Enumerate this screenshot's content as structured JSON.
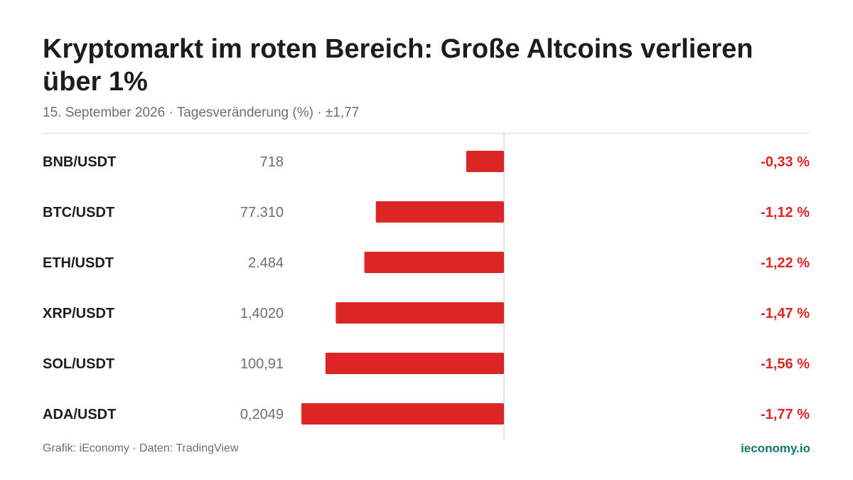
{
  "header": {
    "title": "Kryptomarkt im roten Bereich: Große Altcoins verlieren über 1%",
    "subtitle_date": "15. September 2026",
    "subtitle_separator": " · ",
    "subtitle_metric": "Tagesveränderung (%)",
    "subtitle_range": "±1,77"
  },
  "footer": {
    "credit": "Grafik: iEconomy · Daten: TradingView",
    "brand": "ieconomy.io"
  },
  "colors": {
    "bar": "#dc2626",
    "change_text": "#dc2626",
    "zero_line": "#d9dcda",
    "pair_text": "#1a1f1c",
    "price_text": "#6b6f6d",
    "brand": "#0f7a6b"
  },
  "chart_data": {
    "type": "bar",
    "orientation": "horizontal",
    "xlim": [
      -1.77,
      1.77
    ],
    "categories": [
      "BNB/USDT",
      "BTC/USDT",
      "ETH/USDT",
      "XRP/USDT",
      "SOL/USDT",
      "ADA/USDT"
    ],
    "prices": [
      "718",
      "77.310",
      "2.484",
      "1,4020",
      "100,91",
      "0,2049"
    ],
    "values": [
      -0.33,
      -1.12,
      -1.22,
      -1.47,
      -1.56,
      -1.77
    ],
    "value_labels": [
      "-0,33 %",
      "-1,12 %",
      "-1,22 %",
      "-1,47 %",
      "-1,56 %",
      "-1,77 %"
    ]
  }
}
